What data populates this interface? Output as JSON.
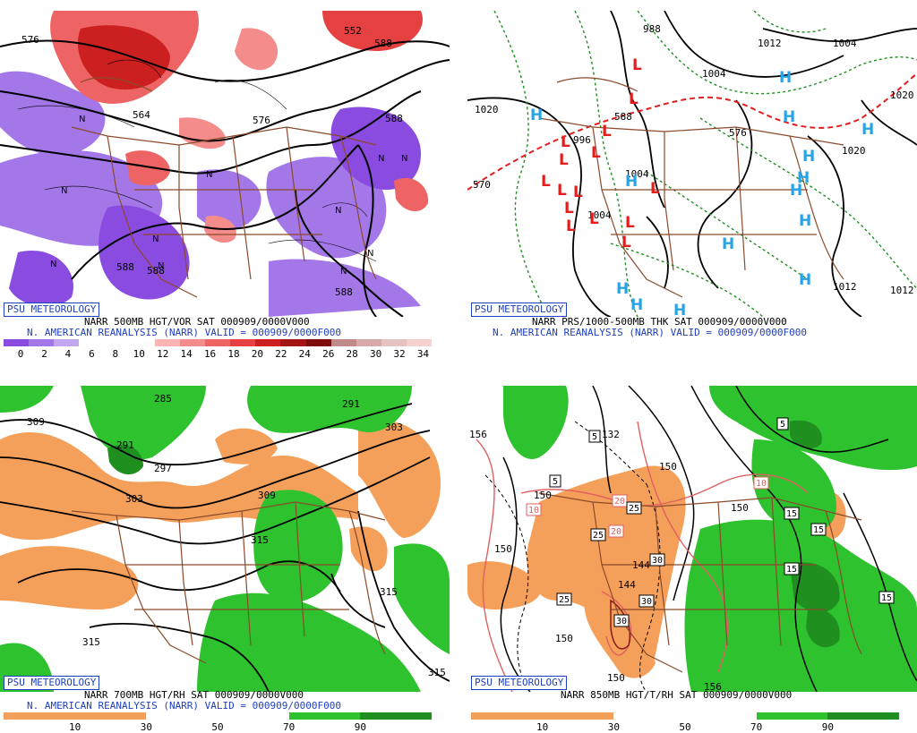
{
  "panels": [
    {
      "id": "p1",
      "badge": "PSU METEOROLOGY",
      "title_line": "NARR 500MB HGT/VOR SAT 000909/0000V000",
      "valid_line": "N. AMERICAN REANALYSIS (NARR) VALID = 000909/0000F000",
      "colorbar": {
        "colors": [
          "#8a4be0",
          "#a477e8",
          "#c3a6f0",
          "#ffffff",
          "#ffffff",
          "#ffffff",
          "#ffb3b3",
          "#f58c8c",
          "#ee6464",
          "#e54141",
          "#cc1f1f",
          "#a31414",
          "#7f0c0c",
          "#c08a8a",
          "#d9a8a8",
          "#e6c3c3",
          "#f7d0d0"
        ],
        "labels": [
          "0",
          "2",
          "4",
          "6",
          "8",
          "10",
          "12",
          "14",
          "16",
          "18",
          "20",
          "22",
          "24",
          "26",
          "28",
          "30",
          "32",
          "34"
        ]
      },
      "map_labels": [
        "576",
        "552",
        "564",
        "588",
        "576",
        "588",
        "588",
        "588",
        "588"
      ],
      "symbols": [
        "N",
        "N",
        "N",
        "N",
        "N",
        "N",
        "N",
        "N",
        "N",
        "N",
        "N"
      ]
    },
    {
      "id": "p2",
      "badge": "PSU METEOROLOGY",
      "title_line": "NARR PRS/1000-500MB THK SAT 000909/0000V000",
      "valid_line": "N. AMERICAN REANALYSIS (NARR) VALID = 000909/0000F000",
      "map_labels": [
        "1020",
        "1012",
        "1004",
        "988",
        "1004",
        "1020",
        "1020",
        "1012",
        "570",
        "588",
        "996",
        "1004",
        "1004",
        "576",
        "1012"
      ],
      "highs": [
        "H",
        "H",
        "H",
        "H",
        "H",
        "H",
        "H",
        "H",
        "H",
        "H",
        "H",
        "H",
        "H",
        "H"
      ],
      "lows": [
        "L",
        "L",
        "L",
        "L",
        "L",
        "L",
        "L",
        "L",
        "L",
        "L",
        "L",
        "L",
        "L",
        "L",
        "L"
      ]
    },
    {
      "id": "p3",
      "badge": "PSU METEOROLOGY",
      "title_line": "NARR 700MB HGT/RH SAT 000909/0000V000",
      "valid_line": "N. AMERICAN REANALYSIS (NARR) VALID = 000909/0000F000",
      "colorbar": {
        "colors": [
          "#f5a05a",
          "#f5a05a",
          "#ffffff",
          "#ffffff",
          "#2ec22e",
          "#1f8f1f"
        ],
        "labels": [
          "10",
          "30",
          "50",
          "70",
          "90"
        ]
      },
      "map_labels": [
        "309",
        "285",
        "291",
        "297",
        "303",
        "309",
        "315",
        "303",
        "291",
        "315",
        "315",
        "315"
      ]
    },
    {
      "id": "p4",
      "badge": "PSU METEOROLOGY",
      "title_line": "NARR 850MB HGT/T/RH SAT 000909/0000V000",
      "colorbar": {
        "colors": [
          "#f5a05a",
          "#f5a05a",
          "#ffffff",
          "#ffffff",
          "#2ec22e",
          "#1f8f1f"
        ],
        "labels": [
          "10",
          "30",
          "50",
          "70",
          "90"
        ]
      },
      "map_labels": [
        "156",
        "132",
        "150",
        "150",
        "144",
        "144",
        "150",
        "150",
        "156",
        "150",
        "150"
      ],
      "boxed_labels": [
        "5",
        "5",
        "20",
        "25",
        "10",
        "25",
        "20",
        "30",
        "30",
        "30",
        "25",
        "10",
        "15",
        "15",
        "15",
        "15",
        "5"
      ]
    }
  ]
}
